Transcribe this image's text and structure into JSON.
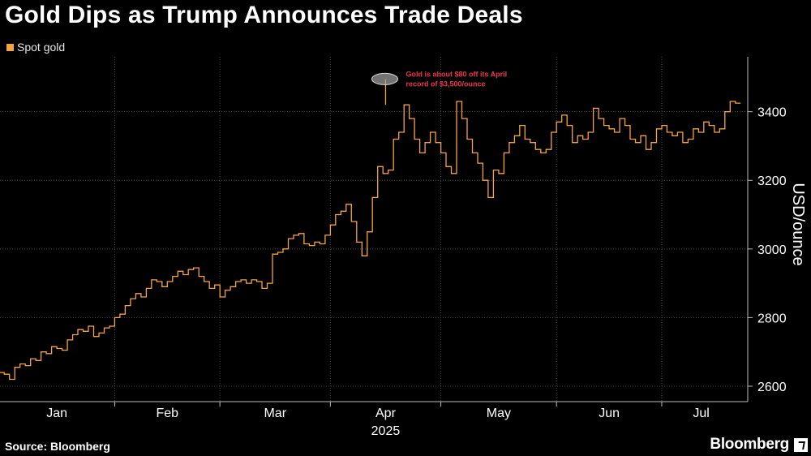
{
  "header": {
    "title": "Gold Dips as Trump Announces Trade Deals",
    "legend_label": "Spot gold"
  },
  "footer": {
    "source": "Source: Bloomberg",
    "brand": "Bloomberg"
  },
  "colors": {
    "series": "#f5a445",
    "grid": "#4a4a4a",
    "annotation": "#e8384f"
  },
  "chart_data": {
    "type": "line",
    "title": "Gold Dips as Trump Announces Trade Deals",
    "ylabel": "USD/ounce",
    "xlabel": "2025",
    "ylim": [
      2555,
      3560
    ],
    "yticks": [
      2600,
      2800,
      3000,
      3200,
      3400
    ],
    "months": [
      {
        "label": "Jan",
        "index": 0
      },
      {
        "label": "Feb",
        "index": 22
      },
      {
        "label": "Mar",
        "index": 42
      },
      {
        "label": "Apr",
        "index": 63
      },
      {
        "label": "May",
        "index": 84
      },
      {
        "label": "Jun",
        "index": 106
      },
      {
        "label": "Jul",
        "index": 126
      }
    ],
    "year_label": "2025",
    "annotation": {
      "text": [
        "Gold is about $80 off its April",
        "record of $3,500/ounce"
      ],
      "index": 73,
      "value": 3500
    },
    "series": [
      {
        "name": "Spot gold",
        "values": [
          2640,
          2635,
          2620,
          2655,
          2665,
          2660,
          2680,
          2675,
          2700,
          2695,
          2715,
          2710,
          2705,
          2735,
          2750,
          2765,
          2760,
          2775,
          2745,
          2755,
          2770,
          2775,
          2800,
          2810,
          2835,
          2855,
          2870,
          2860,
          2885,
          2910,
          2905,
          2890,
          2905,
          2920,
          2935,
          2925,
          2940,
          2945,
          2920,
          2905,
          2885,
          2895,
          2860,
          2880,
          2890,
          2905,
          2910,
          2900,
          2910,
          2905,
          2885,
          2900,
          2985,
          2990,
          3000,
          3030,
          3040,
          3045,
          3015,
          3010,
          3020,
          3015,
          3040,
          3070,
          3100,
          3110,
          3130,
          3080,
          3020,
          2980,
          3050,
          3150,
          3240,
          3220,
          3230,
          3320,
          3340,
          3420,
          3380,
          3320,
          3280,
          3310,
          3340,
          3310,
          3280,
          3240,
          3220,
          3430,
          3380,
          3320,
          3280,
          3250,
          3200,
          3150,
          3230,
          3220,
          3280,
          3310,
          3330,
          3360,
          3320,
          3310,
          3290,
          3280,
          3290,
          3340,
          3370,
          3390,
          3360,
          3310,
          3330,
          3320,
          3340,
          3410,
          3380,
          3360,
          3350,
          3340,
          3380,
          3360,
          3320,
          3310,
          3330,
          3290,
          3310,
          3350,
          3360,
          3340,
          3330,
          3340,
          3310,
          3320,
          3350,
          3340,
          3370,
          3360,
          3340,
          3350,
          3400,
          3430,
          3425
        ]
      }
    ]
  }
}
